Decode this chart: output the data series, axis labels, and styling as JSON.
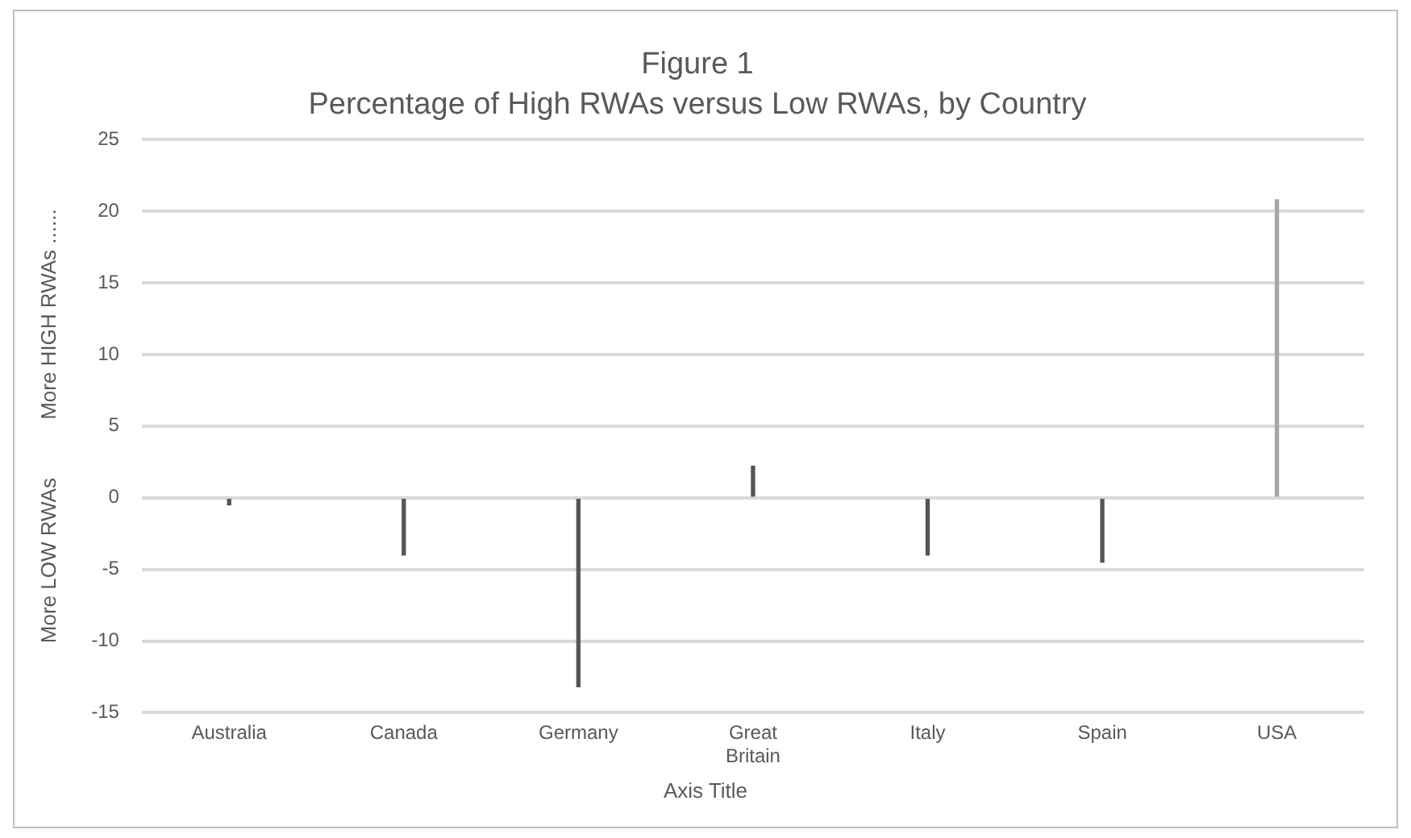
{
  "chart_data": {
    "type": "bar",
    "title": "Figure 1",
    "subtitle": "Percentage of High RWAs versus Low RWAs, by Country",
    "xlabel": "Axis Title",
    "ylabel": "More LOW RWAs          More HIGH RWAs ......",
    "categories": [
      "Australia",
      "Canada",
      "Germany",
      "Great Britain",
      "Italy",
      "Spain",
      "USA"
    ],
    "values": [
      -0.5,
      -4,
      -13.2,
      2.2,
      -4,
      -4.5,
      20.8
    ],
    "colors": [
      "#555555",
      "#555555",
      "#555555",
      "#555555",
      "#555555",
      "#555555",
      "#a6a6a6"
    ],
    "ylim": [
      -15,
      25
    ],
    "yticks": [
      -15,
      -10,
      -5,
      0,
      5,
      10,
      15,
      20,
      25
    ],
    "grid": "y"
  }
}
